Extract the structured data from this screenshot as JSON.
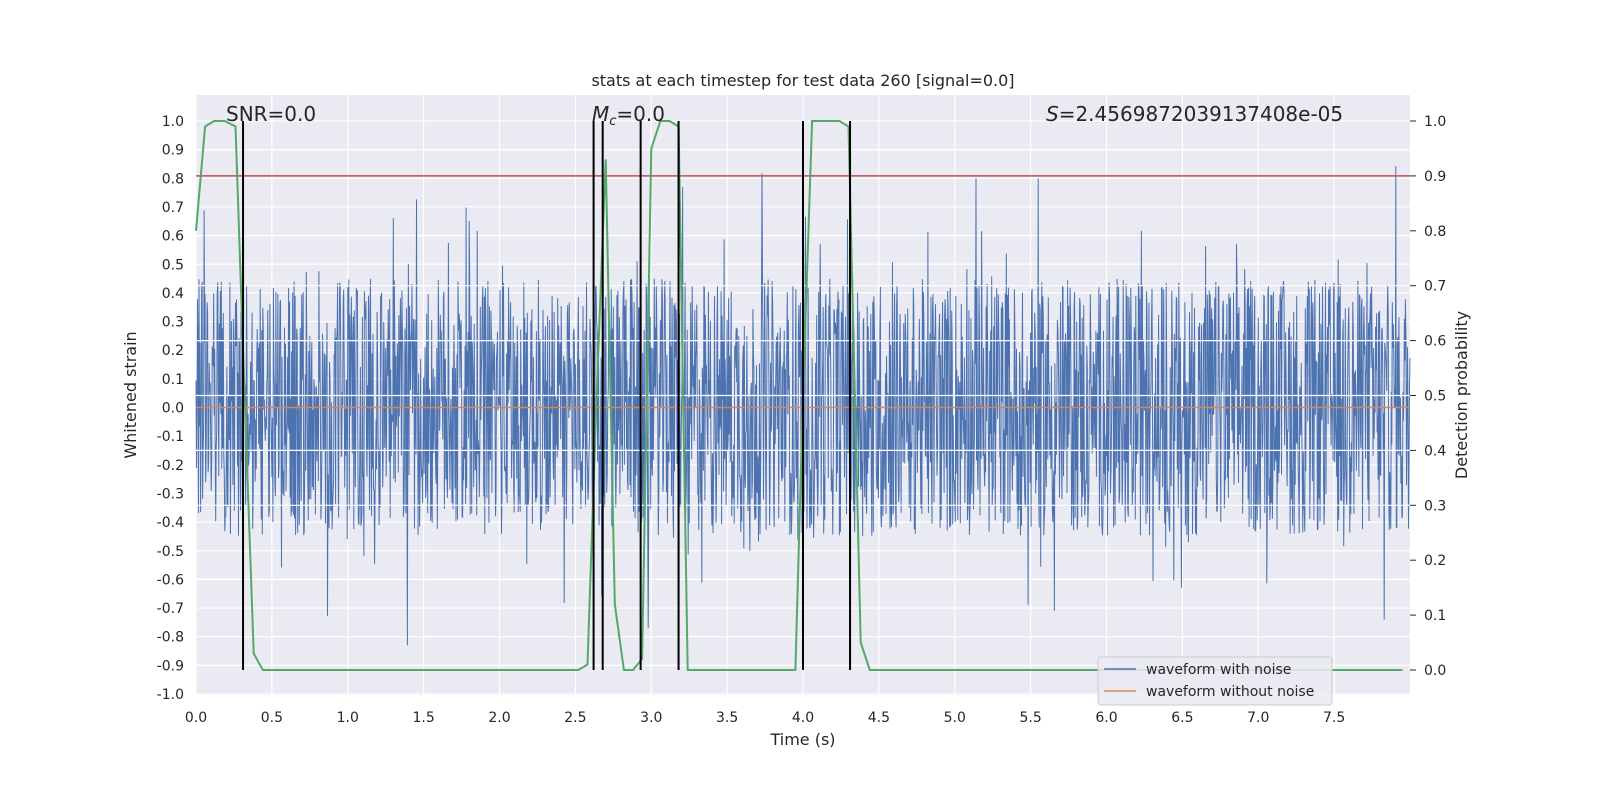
{
  "chart_data": {
    "type": "line",
    "title": "stats at each timestep for test data 260 [signal=0.0]",
    "xlabel": "Time (s)",
    "ylabel": "Whitened strain",
    "y2label": "Detection probability",
    "xlim": [
      0.0,
      8.0
    ],
    "ylim": [
      -1.0,
      1.0
    ],
    "y2lim": [
      -0.0436,
      1.0436
    ],
    "xticks": [
      "0.0",
      "0.5",
      "1.0",
      "1.5",
      "2.0",
      "2.5",
      "3.0",
      "3.5",
      "4.0",
      "4.5",
      "5.0",
      "5.5",
      "6.0",
      "6.5",
      "7.0",
      "7.5"
    ],
    "yticks": [
      "1.0",
      "0.9",
      "0.8",
      "0.7",
      "0.6",
      "0.5",
      "0.4",
      "0.3",
      "0.2",
      "0.1",
      "0.0",
      "-0.1",
      "-0.2",
      "-0.3",
      "-0.4",
      "-0.5",
      "-0.6",
      "-0.7",
      "-0.8",
      "-0.9",
      "-1.0"
    ],
    "y2ticks": [
      "1.0",
      "0.9",
      "0.8",
      "0.7",
      "0.6",
      "0.5",
      "0.4",
      "0.3",
      "0.2",
      "0.1",
      "0.0"
    ],
    "grid": true,
    "legend_position": "lower-right",
    "annotations": {
      "snr": "SNR=0.0",
      "mc_symbol": "M",
      "mc_sub": "c",
      "mc_value": "=0.0",
      "s_symbol": "S",
      "s_value": "=2.4569872039137408e-05"
    },
    "series": [
      {
        "name": "waveform with noise",
        "color": "#4c72b0",
        "noise_envelope": 0.45,
        "spike_max": 1.0
      },
      {
        "name": "waveform without noise",
        "color": "#dd8452",
        "x": [
          0.0,
          8.0
        ],
        "y": [
          0.0,
          0.0
        ]
      }
    ],
    "threshold": {
      "axis": "right",
      "value": 0.9,
      "color": "#c44e52"
    },
    "detection_probability": {
      "color": "#55a868",
      "x": [
        0.0,
        0.06,
        0.12,
        0.19,
        0.26,
        0.32,
        0.38,
        0.44,
        2.52,
        2.58,
        2.64,
        2.7,
        2.76,
        2.82,
        2.88,
        2.94,
        3.0,
        3.06,
        3.12,
        3.18,
        3.24,
        3.95,
        4.0,
        4.06,
        4.12,
        4.18,
        4.24,
        4.3,
        4.38,
        4.44,
        7.95
      ],
      "y": [
        0.8,
        0.99,
        1.0,
        1.0,
        0.99,
        0.5,
        0.03,
        0.0,
        0.0,
        0.01,
        0.5,
        0.93,
        0.12,
        0.0,
        0.0,
        0.02,
        0.95,
        1.0,
        1.0,
        0.99,
        0.0,
        0.0,
        0.5,
        1.0,
        1.0,
        1.0,
        1.0,
        0.99,
        0.05,
        0.0,
        0.0
      ]
    },
    "detection_markers": {
      "color": "#000000",
      "x": [
        0.31,
        2.62,
        2.68,
        2.93,
        3.18,
        4.0,
        4.31
      ],
      "y_range": [
        0.0,
        1.0
      ]
    }
  }
}
